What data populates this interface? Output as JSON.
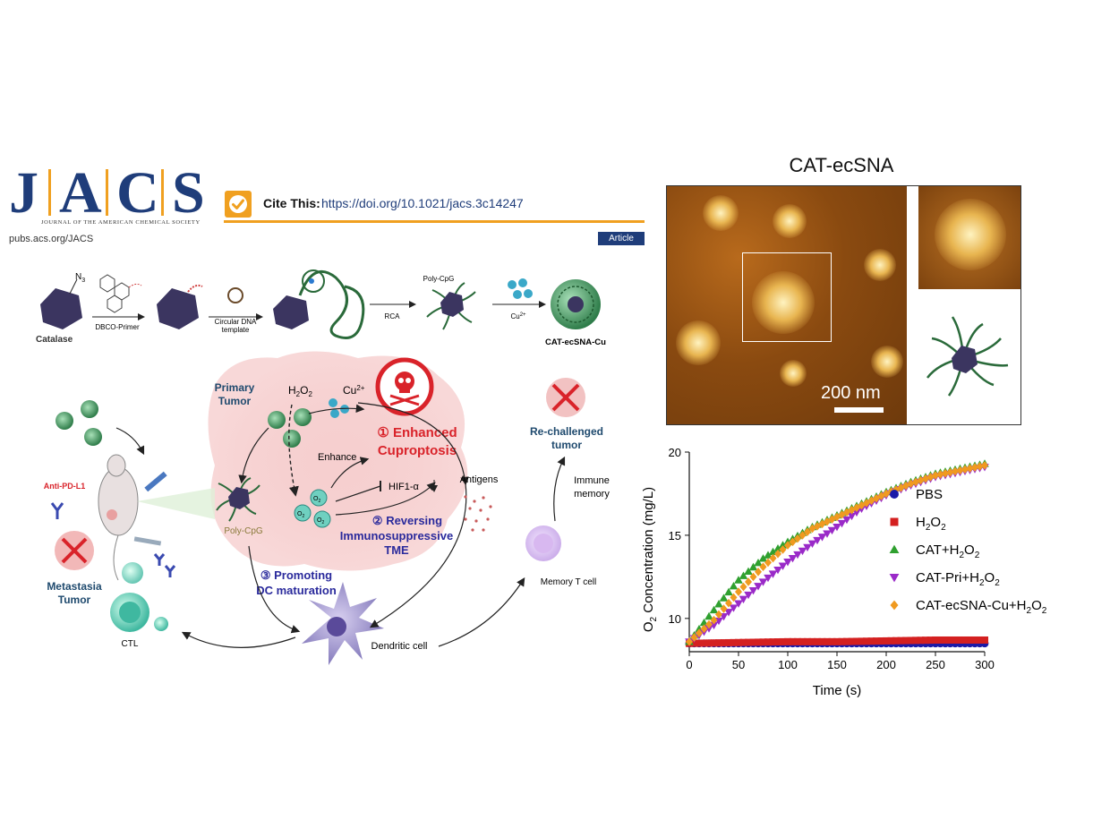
{
  "header": {
    "journal_letters": [
      "J",
      "A",
      "C",
      "S"
    ],
    "journal_fullname": "JOURNAL OF THE AMERICAN CHEMICAL SOCIETY",
    "cite_label": "Cite This:",
    "cite_doi": "https://doi.org/10.1021/jacs.3c14247",
    "pubs_url": "pubs.acs.org/JACS",
    "article_tag": "Article"
  },
  "synthesis": {
    "catalase": "Catalase",
    "n3": "N",
    "n3_sub": "3",
    "dbco_primer": "DBCO-Primer",
    "circular_template_1": "Circular DNA",
    "circular_template_2": "template",
    "rca": "RCA",
    "poly_cpg_top": "Poly-CpG",
    "cu_top": "Cu",
    "cu_top_sup": "2+",
    "product": "CAT-ecSNA-Cu"
  },
  "mechanism": {
    "primary_tumor_1": "Primary",
    "primary_tumor_2": "Tumor",
    "h2o2": "H",
    "h2o2_a": "2",
    "h2o2_b": "O",
    "h2o2_c": "2",
    "cu": "Cu",
    "cu_sup": "2+",
    "step1_line1": "① Enhanced",
    "step1_line2": "Cuproptosis",
    "enhance": "Enhance",
    "hif": "HIF1-α",
    "antigens": "Antigens",
    "step2_line1": "② Reversing",
    "step2_line2": "Immunosuppressive",
    "step2_line3": "TME",
    "poly_cpg": "Poly-CpG",
    "step3_line1": "③ Promoting",
    "step3_line2": "DC maturation",
    "o2": "O",
    "o2_sub": "2",
    "anti_pdl1": "Anti-PD-L1",
    "metastasis_1": "Metastasia",
    "metastasis_2": "Tumor",
    "ctl": "CTL",
    "dendritic": "Dendritic cell",
    "rechallenged_1": "Re-challenged",
    "rechallenged_2": "tumor",
    "immune_1": "Immune",
    "immune_2": "memory",
    "memory_t": "Memory T cell"
  },
  "afm": {
    "title": "CAT-ecSNA",
    "scale": "200 nm"
  },
  "colors": {
    "journal_blue": "#1f3d7a",
    "accent_orange": "#f0a020",
    "step1_red": "#d9232a",
    "step_blue": "#2a2a9c",
    "pbs": "#1a1aa8",
    "h2o2": "#d42020",
    "cat": "#2fa02f",
    "cat_pri": "#9a2ac8",
    "cat_ecsna": "#f09a20"
  },
  "chart_data": {
    "type": "scatter",
    "title": "",
    "xlabel": "Time (s)",
    "ylabel_parts": [
      "O",
      "2",
      " Concentration (mg/L)"
    ],
    "xlim": [
      0,
      300
    ],
    "ylim": [
      8,
      20
    ],
    "xticks": [
      0,
      50,
      100,
      150,
      200,
      250,
      300
    ],
    "yticks": [
      10,
      15,
      20
    ],
    "legend_position": "right",
    "series": [
      {
        "name": "PBS",
        "color": "#1a1aa8",
        "marker": "circle",
        "x": [
          0,
          50,
          100,
          150,
          200,
          250,
          300
        ],
        "y": [
          8.5,
          8.5,
          8.5,
          8.5,
          8.5,
          8.5,
          8.5
        ]
      },
      {
        "name": "H2O2",
        "label_parts": [
          "H",
          "2",
          "O",
          "2"
        ],
        "color": "#d42020",
        "marker": "square",
        "x": [
          0,
          50,
          100,
          150,
          200,
          250,
          300
        ],
        "y": [
          8.5,
          8.55,
          8.6,
          8.6,
          8.65,
          8.7,
          8.7
        ]
      },
      {
        "name": "CAT+H2O2",
        "label_parts": [
          "CAT+H",
          "2",
          "O",
          "2"
        ],
        "color": "#2fa02f",
        "marker": "triangle-up",
        "x": [
          0,
          25,
          50,
          75,
          100,
          125,
          150,
          175,
          200,
          225,
          250,
          275,
          300
        ],
        "y": [
          8.6,
          10.5,
          12.3,
          13.6,
          14.6,
          15.5,
          16.2,
          16.9,
          17.6,
          18.2,
          18.7,
          19.0,
          19.3
        ]
      },
      {
        "name": "CAT-Pri+H2O2",
        "label_parts": [
          "CAT-Pri+H",
          "2",
          "O",
          "2"
        ],
        "color": "#9a2ac8",
        "marker": "triangle-down",
        "x": [
          0,
          25,
          50,
          75,
          100,
          125,
          150,
          175,
          200,
          225,
          250,
          275,
          300
        ],
        "y": [
          8.6,
          9.6,
          10.9,
          12.2,
          13.4,
          14.5,
          15.5,
          16.6,
          17.4,
          18.0,
          18.5,
          18.8,
          19.1
        ]
      },
      {
        "name": "CAT-ecSNA-Cu+H2O2",
        "label_parts": [
          "CAT-ecSNA-Cu+H",
          "2",
          "O",
          "2"
        ],
        "color": "#f09a20",
        "marker": "diamond",
        "x": [
          0,
          25,
          50,
          75,
          100,
          125,
          150,
          175,
          200,
          225,
          250,
          275,
          300
        ],
        "y": [
          8.6,
          9.9,
          11.6,
          13.1,
          14.4,
          15.4,
          16.1,
          16.8,
          17.5,
          18.1,
          18.6,
          18.9,
          19.2
        ]
      }
    ]
  }
}
